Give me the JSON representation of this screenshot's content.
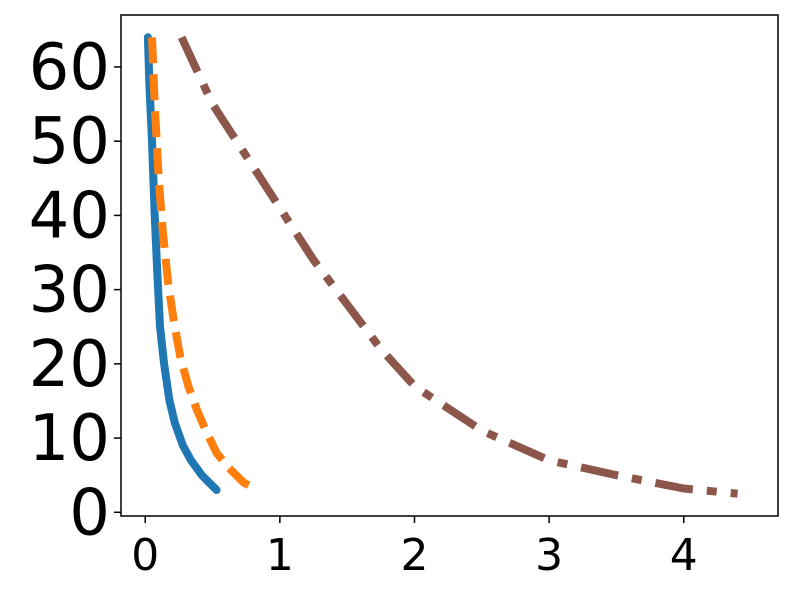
{
  "chart_data": {
    "type": "line",
    "title": "",
    "xlabel": "",
    "ylabel": "",
    "xlim": [
      -0.18,
      4.7
    ],
    "ylim": [
      -0.5,
      67
    ],
    "xticks": [
      0,
      1,
      2,
      3,
      4
    ],
    "yticks": [
      0,
      10,
      20,
      30,
      40,
      50,
      60
    ],
    "grid": false,
    "legend": "none",
    "series": [
      {
        "color": "#1f77b4",
        "style": "solid",
        "points": [
          [
            0.02,
            64
          ],
          [
            0.03,
            58
          ],
          [
            0.05,
            50
          ],
          [
            0.07,
            40
          ],
          [
            0.09,
            32
          ],
          [
            0.11,
            25
          ],
          [
            0.14,
            20
          ],
          [
            0.18,
            15
          ],
          [
            0.22,
            12
          ],
          [
            0.28,
            9
          ],
          [
            0.34,
            7
          ],
          [
            0.42,
            5
          ],
          [
            0.53,
            3
          ]
        ]
      },
      {
        "color": "#ff7f0e",
        "style": "dashed",
        "points": [
          [
            0.05,
            64
          ],
          [
            0.07,
            55
          ],
          [
            0.1,
            45
          ],
          [
            0.13,
            38
          ],
          [
            0.17,
            31
          ],
          [
            0.21,
            26
          ],
          [
            0.26,
            21
          ],
          [
            0.32,
            17
          ],
          [
            0.38,
            14
          ],
          [
            0.45,
            11
          ],
          [
            0.53,
            8
          ],
          [
            0.62,
            6
          ],
          [
            0.73,
            4
          ],
          [
            0.84,
            3
          ]
        ]
      },
      {
        "color": "#8c564b",
        "style": "dashdot",
        "points": [
          [
            0.27,
            64
          ],
          [
            0.5,
            55
          ],
          [
            0.75,
            48
          ],
          [
            1.0,
            41
          ],
          [
            1.25,
            34
          ],
          [
            1.5,
            28
          ],
          [
            1.75,
            22
          ],
          [
            2.0,
            17
          ],
          [
            2.5,
            11
          ],
          [
            3.0,
            7
          ],
          [
            3.5,
            5
          ],
          [
            4.0,
            3.2
          ],
          [
            4.4,
            2.5
          ]
        ]
      }
    ]
  }
}
